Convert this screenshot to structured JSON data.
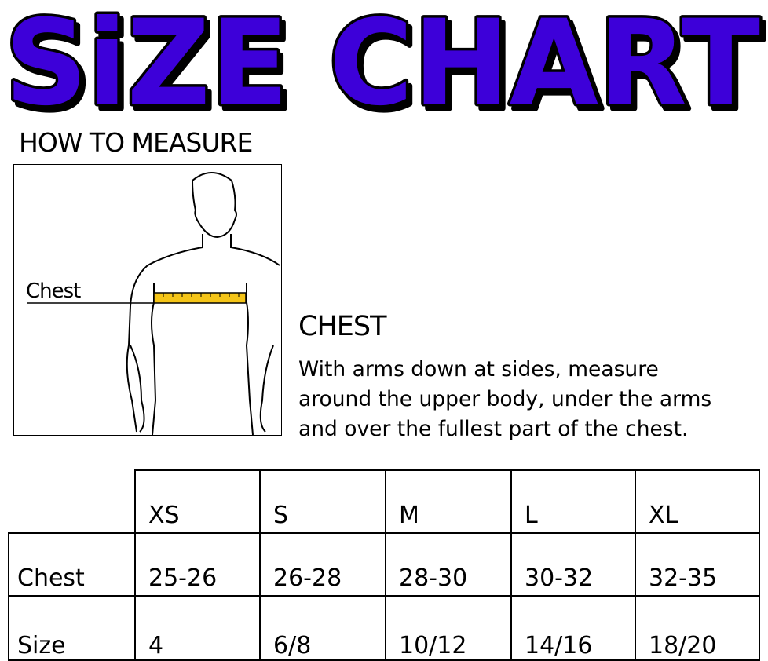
{
  "title": "SiZE CHART",
  "title_color": "#3d00d9",
  "how_to_measure": "HOW TO MEASURE",
  "figure_label": "Chest",
  "tape_color": "#f5c518",
  "measure": {
    "heading": "CHEST",
    "lines": [
      "With arms down at sides, measure",
      "around the upper body, under the arms",
      "and over the fullest part of the chest."
    ]
  },
  "table": {
    "headers": [
      "XS",
      "S",
      "M",
      "L",
      "XL"
    ],
    "rows": [
      {
        "label": "Chest",
        "values": [
          "25-26",
          "26-28",
          "28-30",
          "30-32",
          "32-35"
        ]
      },
      {
        "label": "Size",
        "values": [
          "4",
          "6/8",
          "10/12",
          "14/16",
          "18/20"
        ]
      }
    ]
  }
}
